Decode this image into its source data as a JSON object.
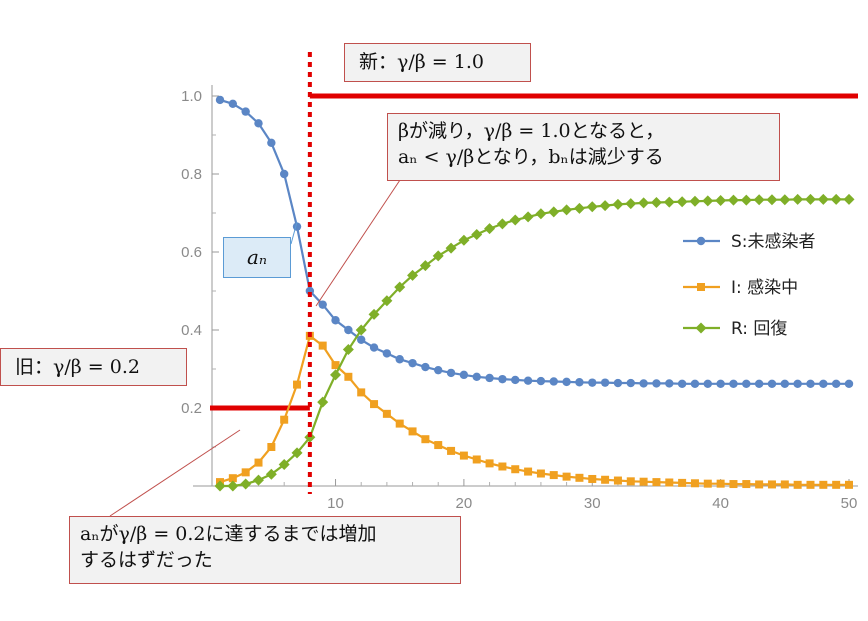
{
  "chart_data": {
    "type": "line",
    "xlim": [
      1,
      50
    ],
    "ylim": [
      0,
      1.0
    ],
    "x_ticks": [
      10,
      20,
      30,
      40,
      50
    ],
    "y_ticks": [
      0.2,
      0.4,
      0.6,
      0.8,
      1.0
    ],
    "y_tick_labels": [
      "0.2",
      "0.4",
      "0.6",
      "0.8",
      "1.0"
    ],
    "x_tick_labels": [
      "10",
      "20",
      "30",
      "40",
      "50"
    ],
    "legend_position": "right",
    "series": [
      {
        "name": "S:未感染者",
        "color": "#5b86c5",
        "marker": "circle",
        "x": [
          1,
          2,
          3,
          4,
          5,
          6,
          7,
          8,
          9,
          10,
          11,
          12,
          13,
          14,
          15,
          16,
          17,
          18,
          19,
          20,
          21,
          22,
          23,
          24,
          25,
          26,
          27,
          28,
          29,
          30,
          31,
          32,
          33,
          34,
          35,
          36,
          37,
          38,
          39,
          40,
          41,
          42,
          43,
          44,
          45,
          46,
          47,
          48,
          49,
          50
        ],
        "values": [
          0.99,
          0.98,
          0.96,
          0.93,
          0.88,
          0.8,
          0.665,
          0.5,
          0.465,
          0.425,
          0.4,
          0.375,
          0.355,
          0.34,
          0.325,
          0.315,
          0.305,
          0.297,
          0.29,
          0.285,
          0.28,
          0.277,
          0.274,
          0.272,
          0.27,
          0.269,
          0.268,
          0.267,
          0.266,
          0.265,
          0.265,
          0.264,
          0.264,
          0.263,
          0.263,
          0.263,
          0.262,
          0.262,
          0.262,
          0.262,
          0.262,
          0.262,
          0.262,
          0.262,
          0.262,
          0.262,
          0.262,
          0.262,
          0.262,
          0.262
        ]
      },
      {
        "name": "I: 感染中",
        "color": "#f0a020",
        "marker": "square",
        "x": [
          1,
          2,
          3,
          4,
          5,
          6,
          7,
          8,
          9,
          10,
          11,
          12,
          13,
          14,
          15,
          16,
          17,
          18,
          19,
          20,
          21,
          22,
          23,
          24,
          25,
          26,
          27,
          28,
          29,
          30,
          31,
          32,
          33,
          34,
          35,
          36,
          37,
          38,
          39,
          40,
          41,
          42,
          43,
          44,
          45,
          46,
          47,
          48,
          49,
          50
        ],
        "values": [
          0.01,
          0.02,
          0.035,
          0.06,
          0.1,
          0.17,
          0.26,
          0.385,
          0.36,
          0.31,
          0.28,
          0.24,
          0.21,
          0.185,
          0.16,
          0.14,
          0.12,
          0.105,
          0.09,
          0.078,
          0.068,
          0.058,
          0.05,
          0.043,
          0.037,
          0.032,
          0.028,
          0.024,
          0.021,
          0.018,
          0.016,
          0.014,
          0.012,
          0.011,
          0.01,
          0.009,
          0.008,
          0.007,
          0.006,
          0.006,
          0.005,
          0.005,
          0.004,
          0.004,
          0.004,
          0.003,
          0.003,
          0.003,
          0.003,
          0.003
        ]
      },
      {
        "name": "R: 回復",
        "color": "#7faf28",
        "marker": "diamond",
        "x": [
          1,
          2,
          3,
          4,
          5,
          6,
          7,
          8,
          9,
          10,
          11,
          12,
          13,
          14,
          15,
          16,
          17,
          18,
          19,
          20,
          21,
          22,
          23,
          24,
          25,
          26,
          27,
          28,
          29,
          30,
          31,
          32,
          33,
          34,
          35,
          36,
          37,
          38,
          39,
          40,
          41,
          42,
          43,
          44,
          45,
          46,
          47,
          48,
          49,
          50
        ],
        "values": [
          0.0,
          0.0,
          0.005,
          0.015,
          0.03,
          0.055,
          0.085,
          0.125,
          0.215,
          0.285,
          0.35,
          0.4,
          0.44,
          0.475,
          0.51,
          0.54,
          0.565,
          0.59,
          0.61,
          0.63,
          0.645,
          0.66,
          0.672,
          0.682,
          0.69,
          0.698,
          0.703,
          0.708,
          0.712,
          0.716,
          0.719,
          0.722,
          0.724,
          0.726,
          0.727,
          0.728,
          0.729,
          0.73,
          0.731,
          0.732,
          0.733,
          0.733,
          0.734,
          0.734,
          0.734,
          0.735,
          0.735,
          0.735,
          0.735,
          0.735
        ]
      }
    ],
    "threshold_old": {
      "value": 0.2,
      "x_start": 1,
      "x_end": 8,
      "color": "#e00000"
    },
    "threshold_new": {
      "value": 1.0,
      "x_start": 8,
      "x_end": 50,
      "color": "#e00000"
    },
    "vertical_marker": {
      "x": 8,
      "color": "#e00000",
      "style": "dotted"
    }
  },
  "annotations": {
    "new_ratio": "新：γ/β = 1.0",
    "old_ratio": "旧：γ/β = 0.2",
    "beta_note_line1": "βが減り，γ/β = 1.0となると，",
    "beta_note_line2": "aₙ < γ/βとなり，bₙは減少する",
    "an_label": "aₙ",
    "bottom_note_line1": "aₙがγ/β = 0.2に達するまでは増加",
    "bottom_note_line2": "するはずだった"
  }
}
